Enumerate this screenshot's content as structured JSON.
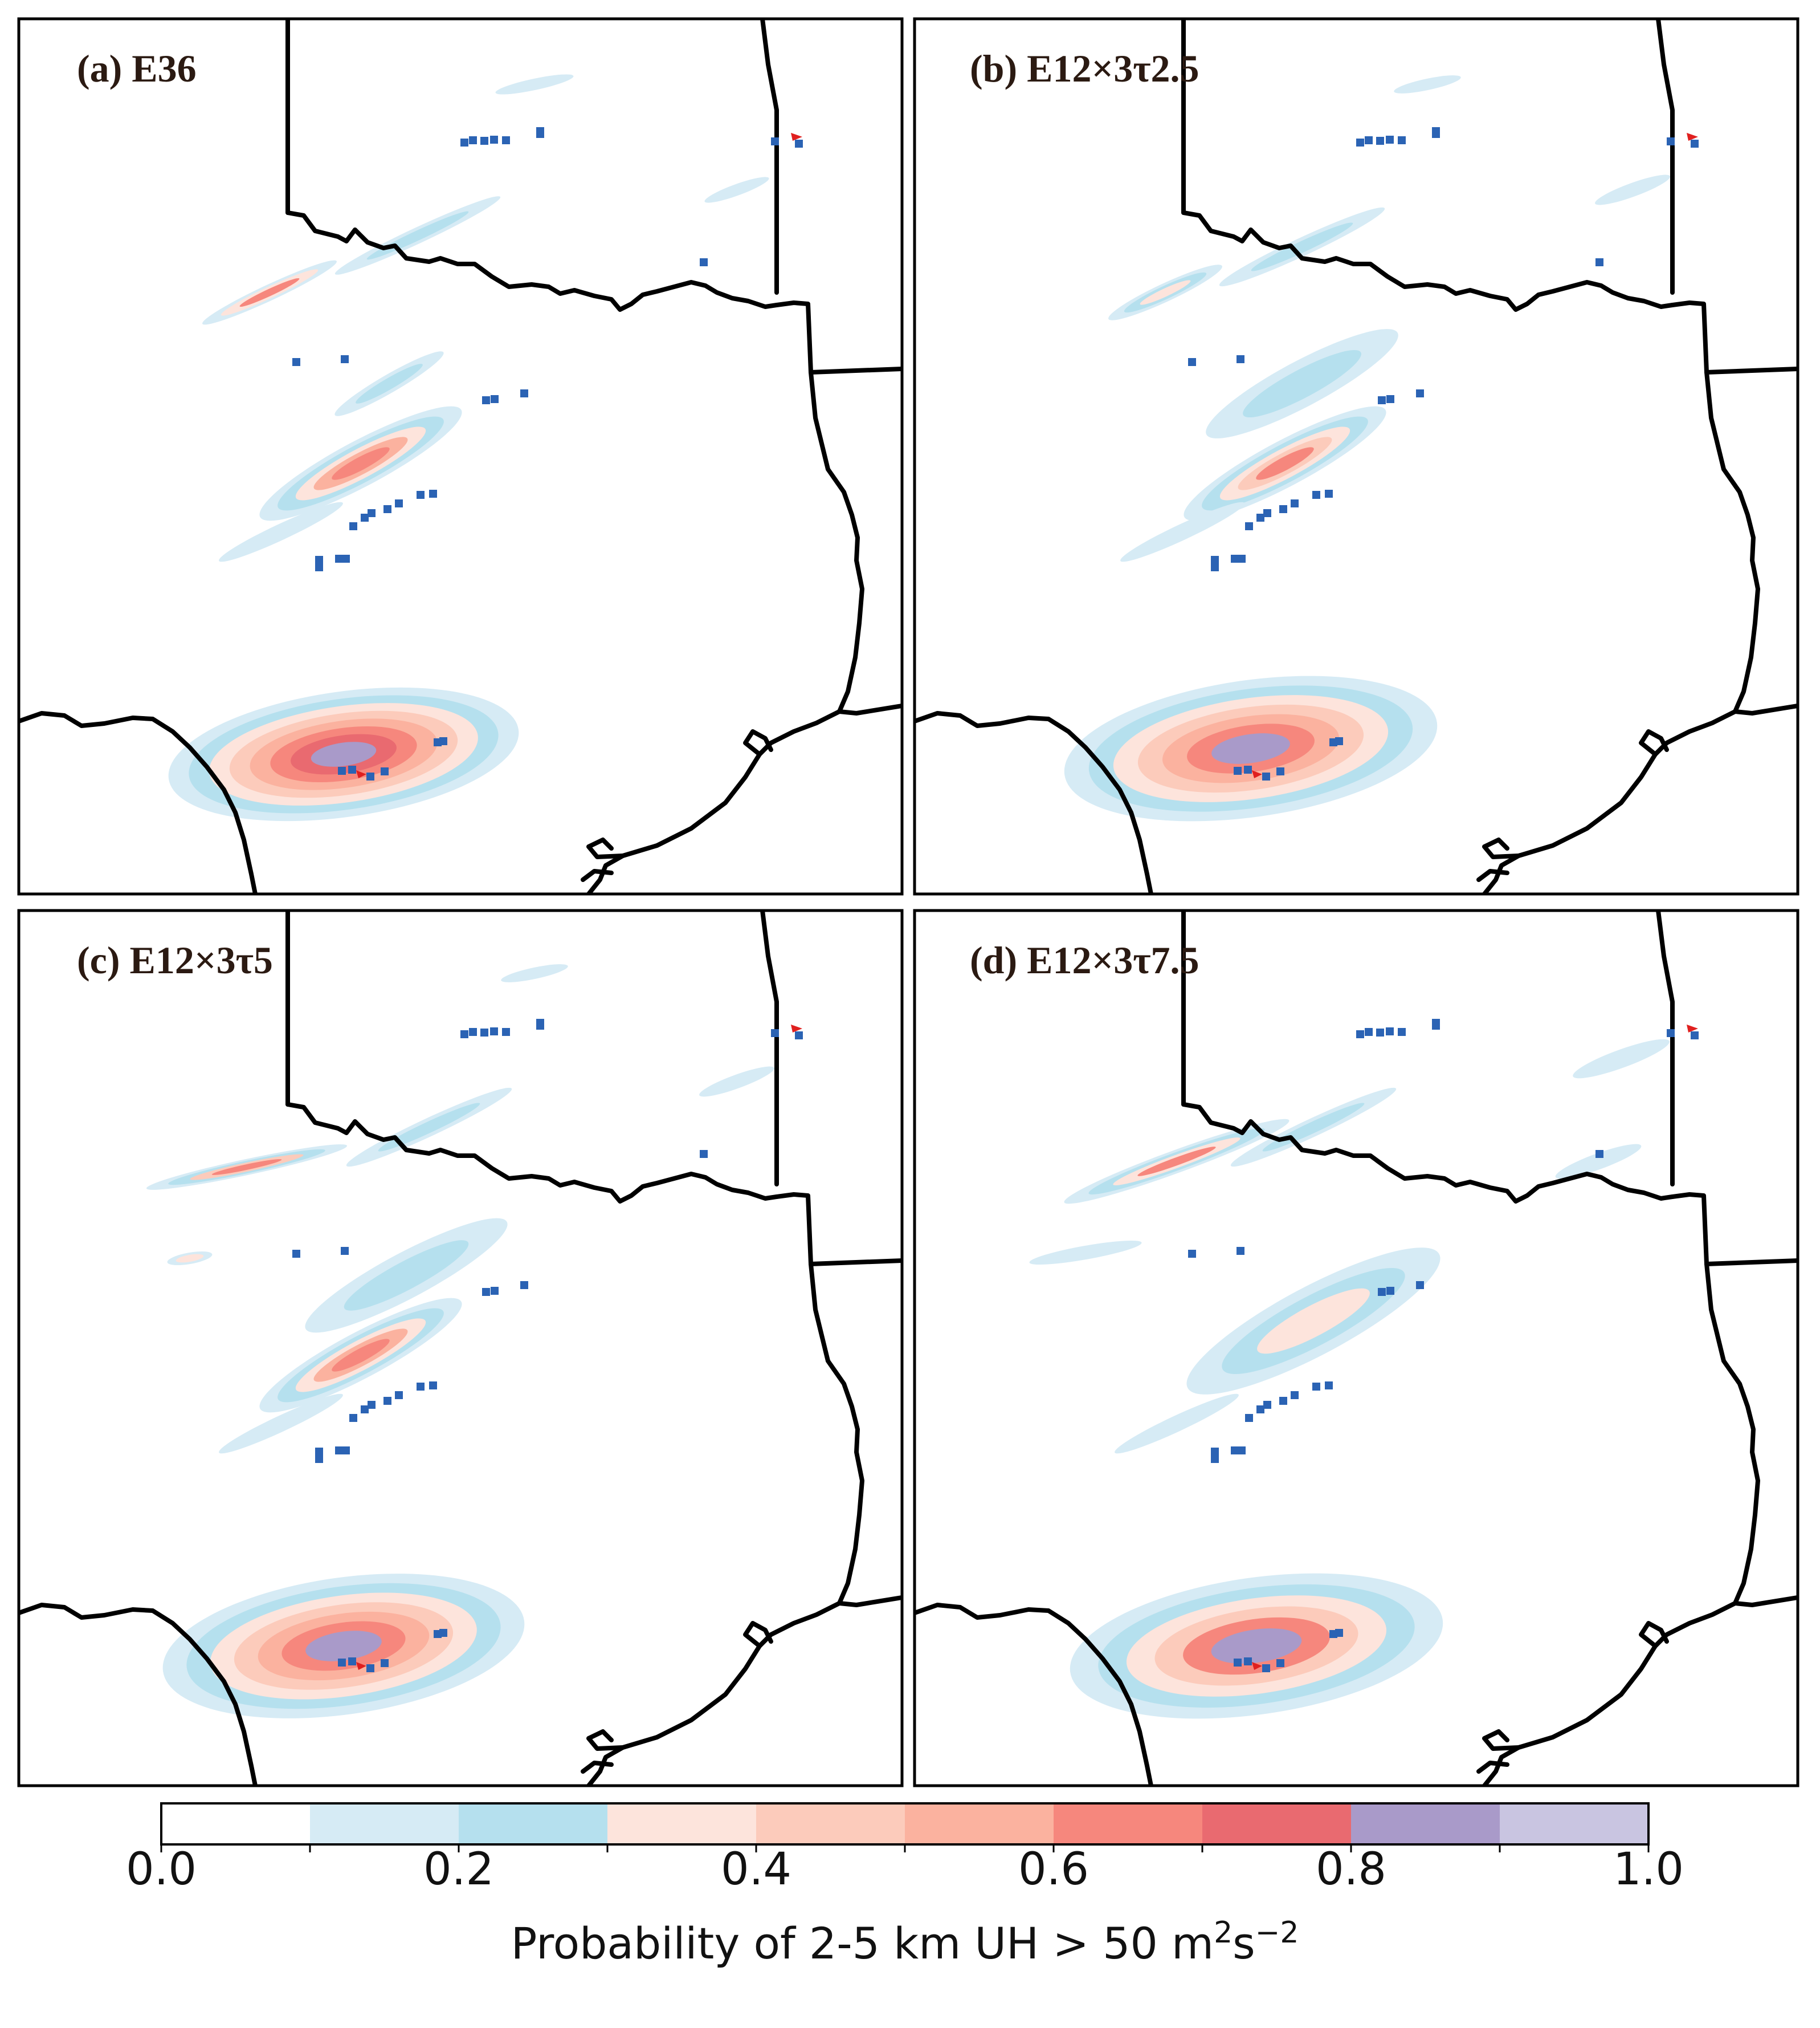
{
  "panels": [
    {
      "title": "(a) E36",
      "variant": "E36"
    },
    {
      "title": "(b) E12×3τ2.5",
      "variant": "tau2.5"
    },
    {
      "title": "(c) E12×3τ5",
      "variant": "tau5"
    },
    {
      "title": "(d) E12×3τ7.5",
      "variant": "tau7.5"
    }
  ],
  "colorbar": {
    "ticks": [
      "0.0",
      "0.2",
      "0.4",
      "0.6",
      "0.8",
      "1.0"
    ],
    "label_prefix": "Probability of 2-5 km UH > 50 m",
    "label_sup1": "2",
    "label_mid": "s",
    "label_sup2": "−2",
    "levels": [
      0.0,
      0.1,
      0.2,
      0.3,
      0.4,
      0.5,
      0.6,
      0.7,
      0.8,
      0.9,
      1.0
    ],
    "colors": [
      "#ffffff",
      "#d6ebf5",
      "#b5e0ee",
      "#fde4dc",
      "#fccbbb",
      "#fbb29f",
      "#f6877d",
      "#e96a70",
      "#a99ac9",
      "#c9c5e1"
    ]
  },
  "legend_colors": {
    "storm_report": "#2b63b4",
    "tornado_report": "#e0201f",
    "state_border": "#000000"
  }
}
